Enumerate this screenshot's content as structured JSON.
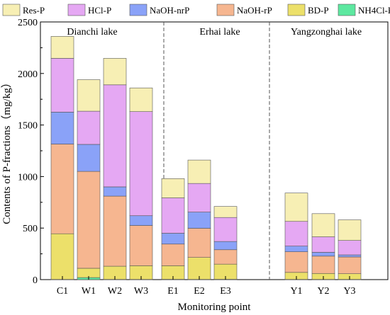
{
  "chart_data": {
    "type": "bar",
    "stacked": true,
    "xlabel": "Monitoring point",
    "ylabel": "Contents of P-fractions（mg/kg）",
    "ylim": [
      0,
      2500
    ],
    "yticks": [
      0,
      500,
      1000,
      1500,
      2000,
      2500
    ],
    "grid": false,
    "legend_position": "top",
    "groups": [
      {
        "label": "Dianchi lake",
        "categories": [
          "C1",
          "W1",
          "W2",
          "W3"
        ]
      },
      {
        "label": "Erhai lake",
        "categories": [
          "E1",
          "E2",
          "E3"
        ]
      },
      {
        "label": "Yangzonghai lake",
        "categories": [
          "Y1",
          "Y2",
          "Y3"
        ]
      }
    ],
    "categories": [
      "C1",
      "W1",
      "W2",
      "W3",
      "E1",
      "E2",
      "E3",
      "Y1",
      "Y2",
      "Y3"
    ],
    "series": [
      {
        "name": "NH4Cl-P",
        "color": "#5de8a0",
        "values": [
          2,
          20,
          2,
          2,
          3,
          2,
          3,
          2,
          2,
          2
        ]
      },
      {
        "name": "BD-P",
        "color": "#ece06a",
        "values": [
          443,
          90,
          128,
          133,
          132,
          213,
          147,
          68,
          58,
          55
        ]
      },
      {
        "name": "NaOH-rP",
        "color": "#f6b690",
        "values": [
          870,
          940,
          680,
          390,
          210,
          283,
          140,
          200,
          168,
          163
        ]
      },
      {
        "name": "NaOH-nrP",
        "color": "#8aa2f8",
        "values": [
          310,
          262,
          90,
          95,
          105,
          157,
          80,
          55,
          37,
          20
        ]
      },
      {
        "name": "HCl-P",
        "color": "#e5a8f3",
        "values": [
          522,
          322,
          990,
          1010,
          343,
          278,
          233,
          240,
          150,
          140
        ]
      },
      {
        "name": "Res-P",
        "color": "#f7efb4",
        "values": [
          213,
          306,
          257,
          230,
          187,
          227,
          107,
          275,
          225,
          200
        ]
      }
    ],
    "legend_order": [
      "Res-P",
      "HCl-P",
      "NaOH-nrP",
      "NaOH-rP",
      "BD-P",
      "NH4Cl-P"
    ]
  }
}
